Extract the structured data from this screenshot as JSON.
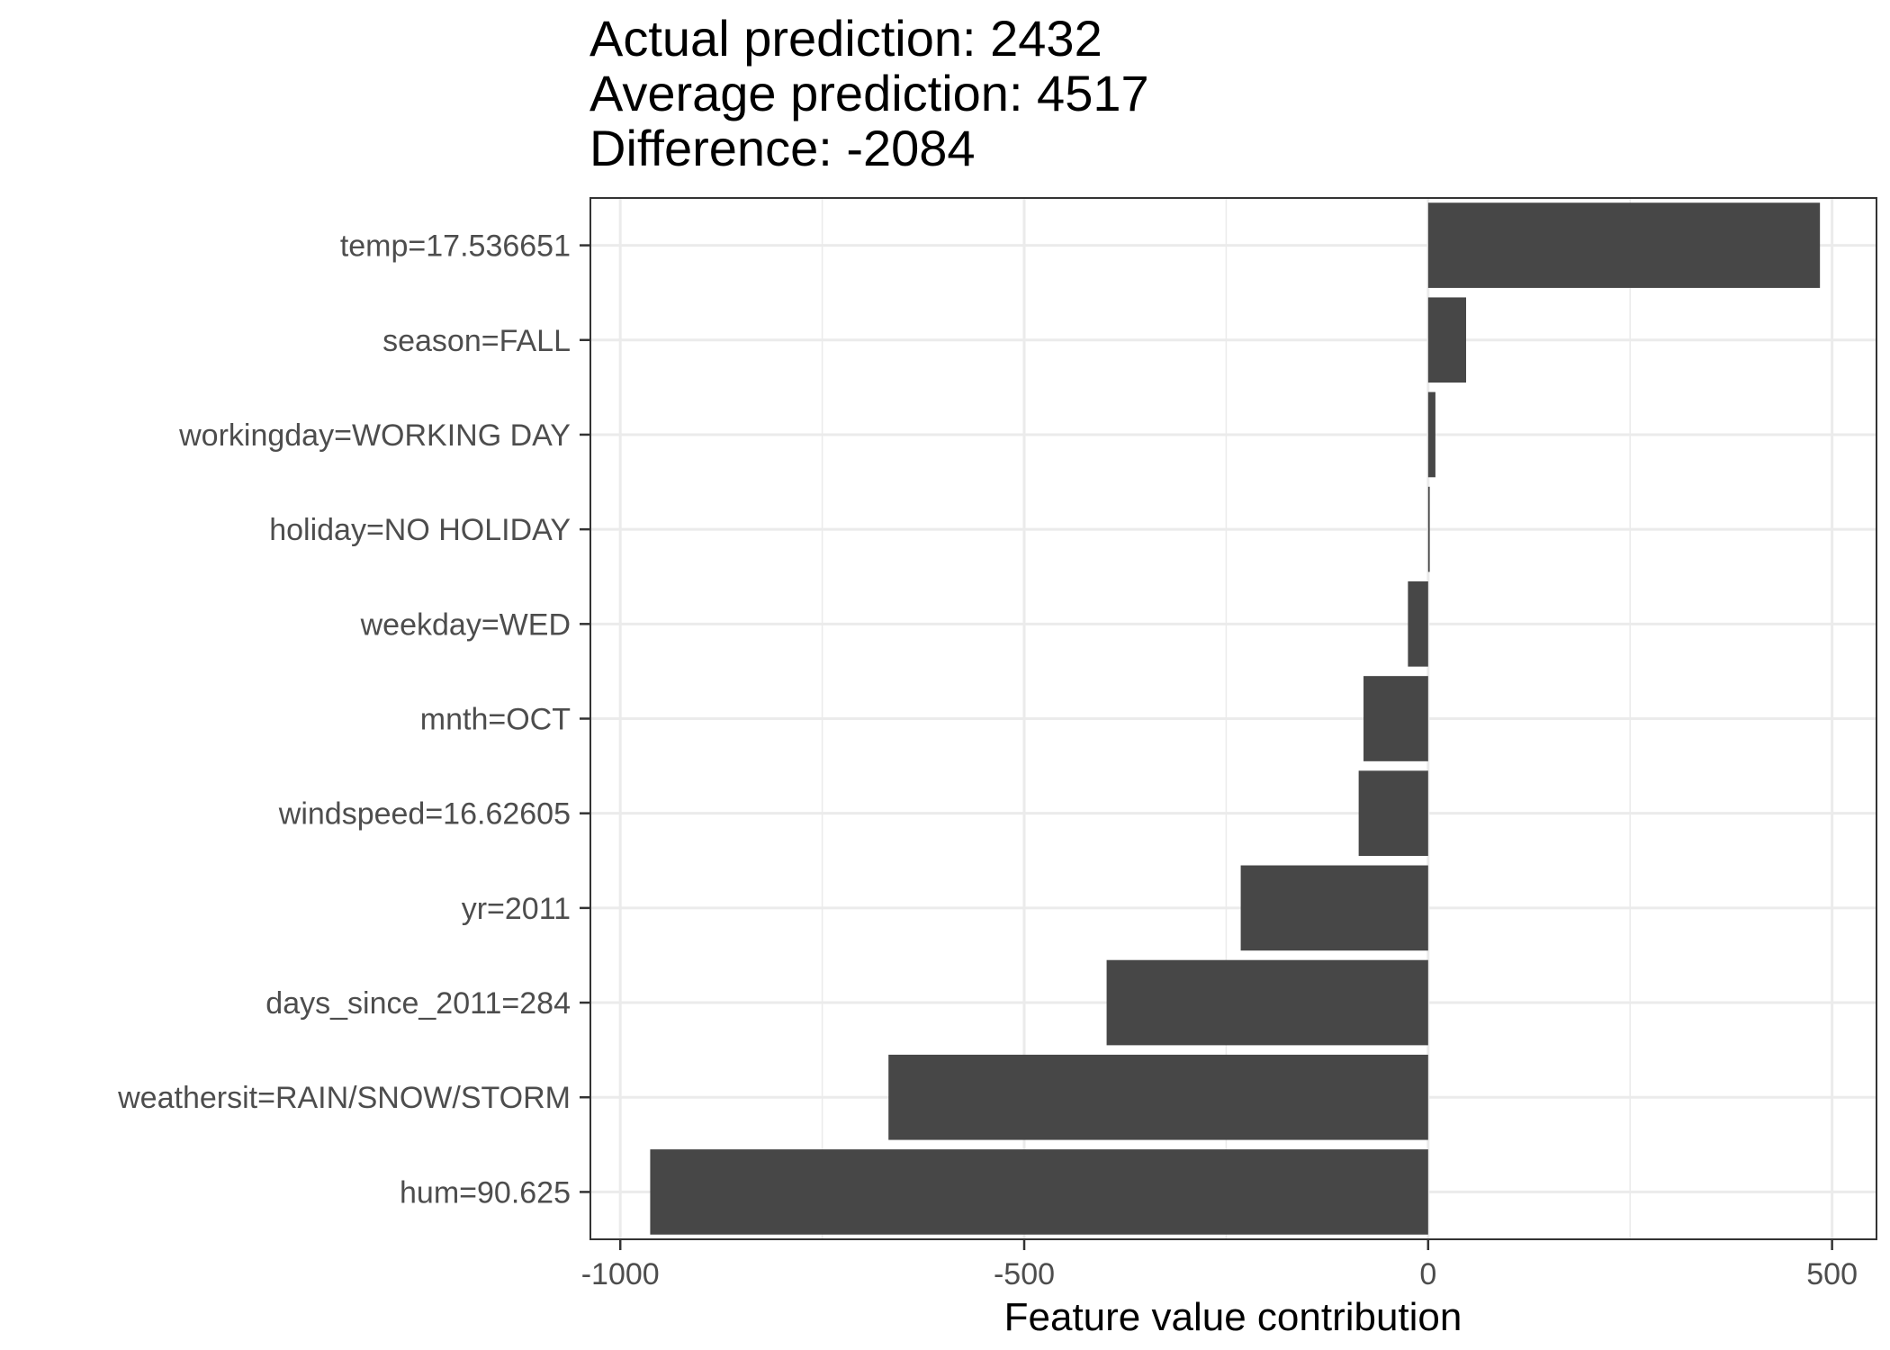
{
  "title_lines": [
    "Actual prediction: 2432",
    "Average prediction: 4517",
    "Difference: -2084"
  ],
  "chart_data": {
    "type": "bar",
    "orientation": "horizontal",
    "categories": [
      "temp=17.536651",
      "season=FALL",
      "workingday=WORKING DAY",
      "holiday=NO HOLIDAY",
      "weekday=WED",
      "mnth=OCT",
      "windspeed=16.62605",
      "yr=2011",
      "days_since_2011=284",
      "weathersit=RAIN/SNOW/STORM",
      "hum=90.625"
    ],
    "values": [
      485,
      47,
      9,
      2,
      -25,
      -80,
      -86,
      -232,
      -398,
      -668,
      -963
    ],
    "xlabel": "Feature value contribution",
    "ylabel": "",
    "xlim": [
      -1000,
      500
    ],
    "x_ticks": [
      -1000,
      -500,
      0,
      500
    ],
    "x_tick_labels": [
      "-1000",
      "-500",
      "0",
      "500"
    ],
    "grid": true,
    "bar_color": "#474747"
  }
}
